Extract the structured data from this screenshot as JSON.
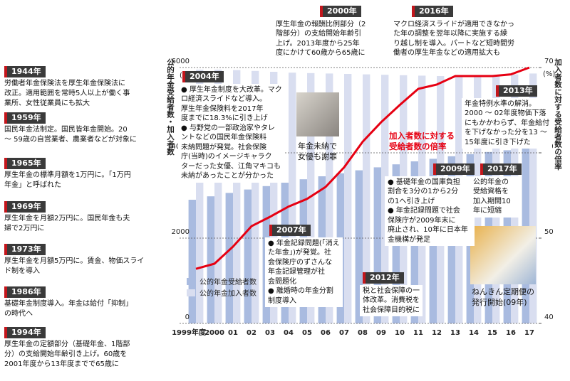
{
  "chart_data": {
    "type": "bar",
    "ylabel": "公的年金受給者数・加入者数",
    "y2label": "加入者数に対する受給者数の倍率",
    "y_unit": "(万人)",
    "y2_unit": "(%)",
    "categories": [
      "1999年度",
      "2000",
      "01",
      "02",
      "03",
      "04",
      "05",
      "06",
      "07",
      "08",
      "09",
      "10",
      "11",
      "12",
      "13",
      "14",
      "15",
      "16",
      "17"
    ],
    "series": [
      {
        "name": "公的年金受給者数",
        "color": "#a9bbe0",
        "values": [
          2900,
          2980,
          3060,
          3140,
          3220,
          3300,
          3380,
          3450,
          3520,
          3590,
          3660,
          3730,
          3800,
          3860,
          3920,
          3970,
          4020,
          4060,
          4100
        ]
      },
      {
        "name": "公的年金加入者数",
        "color": "#d9def0",
        "values": [
          5950,
          5950,
          5940,
          5920,
          5900,
          5880,
          5870,
          5860,
          5850,
          5840,
          5830,
          5820,
          5810,
          5800,
          5800,
          5800,
          5820,
          5840,
          5860
        ]
      },
      {
        "name": "加入者数に対する受給者数の倍率",
        "type": "line",
        "axis": "y2",
        "color": "#e60012",
        "values": [
          46.4,
          47,
          49,
          51.4,
          52.5,
          53.7,
          54.6,
          56,
          58.3,
          61.3,
          63.6,
          65.6,
          67.5,
          68,
          69,
          69,
          69,
          69.2,
          70
        ]
      }
    ],
    "annotation": [
      "加入者数に対する",
      "受給者数の倍率"
    ],
    "ylim": [
      0,
      6000
    ],
    "yticks": [
      0,
      2000,
      4000,
      6000
    ],
    "y2lim": [
      40,
      70
    ],
    "y2ticks": [
      40,
      50,
      60,
      70
    ],
    "grid": true
  },
  "sidebar": [
    {
      "year": "1944年",
      "lines": [
        "労働者年金保険法を厚生年金保険法に",
        "改正。適用範囲を常時5人以上が働く事",
        "業所、女性従業員にも拡大"
      ]
    },
    {
      "year": "1959年",
      "lines": [
        "国民年金法制定。国民皆年金開始。20",
        "〜 59歳の自営業者、農業者などが対象に"
      ]
    },
    {
      "year": "1965年",
      "lines": [
        "厚生年金の標準月額を1万円に。「1万円",
        "年金」と呼ばれた"
      ]
    },
    {
      "year": "1969年",
      "lines": [
        "厚生年金を月額2万円に。国民年金も夫",
        "婦で2万円に"
      ]
    },
    {
      "year": "1973年",
      "lines": [
        "厚生年金を月額5万円に。賃金、物価スライ",
        "ド制を導入"
      ]
    },
    {
      "year": "1986年",
      "lines": [
        "基礎年金制度導入。年金は給付「抑制」",
        "の時代へ"
      ]
    },
    {
      "year": "1994年",
      "lines": [
        "厚生年金の定額部分（基礎年金、1階部",
        "分）の支給開始年齢引き上げ。60歳を",
        "2001年度から13年度までで65歳に"
      ]
    }
  ],
  "callouts": [
    {
      "year": "2000年",
      "lines": [
        "厚生年金の報酬比例部分（2",
        "階部分）の支給開始年齢引",
        "上げ。2013年度から25年",
        "度にかけて60歳から65歳に"
      ]
    },
    {
      "year": "2016年",
      "lines": [
        "マクロ経済スライドが適用できなかっ",
        "た年の調整を翌年以降に実施する繰",
        "り越し制を導入。パートなど短時間労",
        "働者の厚生年金などの適用拡大も"
      ]
    },
    {
      "year": "2004年",
      "lines": [
        "● 厚生年金制度を大改革。マク",
        "ロ経済スライドなど導入。",
        "厚生年金保険料を2017年",
        "度までに18.3%に引き上げ",
        "● 与野党の一部政治家やタレ",
        "ントなどの国民年金保険料",
        "未納問題が発覚。社会保険",
        "庁(当時)のイメージキャラク",
        "ターだった女優、江角マキコも",
        "未納があったことが分かった"
      ]
    },
    {
      "year": "2013年",
      "lines": [
        "年金特例水準の解消。",
        "2000 〜 02年度物価下落",
        "にもかかわらず、年金給付",
        "を下げなかった分を13 〜",
        "15年度に引き下げた"
      ]
    },
    {
      "year": "2009年",
      "lines": [
        "● 基礎年金の国庫負担",
        "割合を3分の1から2分",
        "の1へ引き上げ",
        "● 年金記録問題で社会",
        "保険庁が2009年末に",
        "廃止され、10年に日本年",
        "金機構が発足"
      ]
    },
    {
      "year": "2017年",
      "lines": [
        "公的年金の",
        "受給資格を",
        "加入期間10",
        "年に短縮"
      ]
    },
    {
      "year": "2007年",
      "lines": [
        "● 年金記録問題(「消え",
        "た年金」)が発覚。社",
        "会保険庁のずさんな",
        "年金記録管理が社",
        "会問題化",
        "● 離婚時の年金分割",
        "制度導入"
      ]
    },
    {
      "year": "2012年",
      "lines": [
        "税と社会保障の一",
        "体改革。消費税を",
        "社会保障目的税に"
      ]
    }
  ],
  "photo_captions": [
    [
      "年金未納で",
      "女優も謝罪"
    ],
    [
      "ねんきん定期便の",
      "発行開始(09年)"
    ]
  ]
}
